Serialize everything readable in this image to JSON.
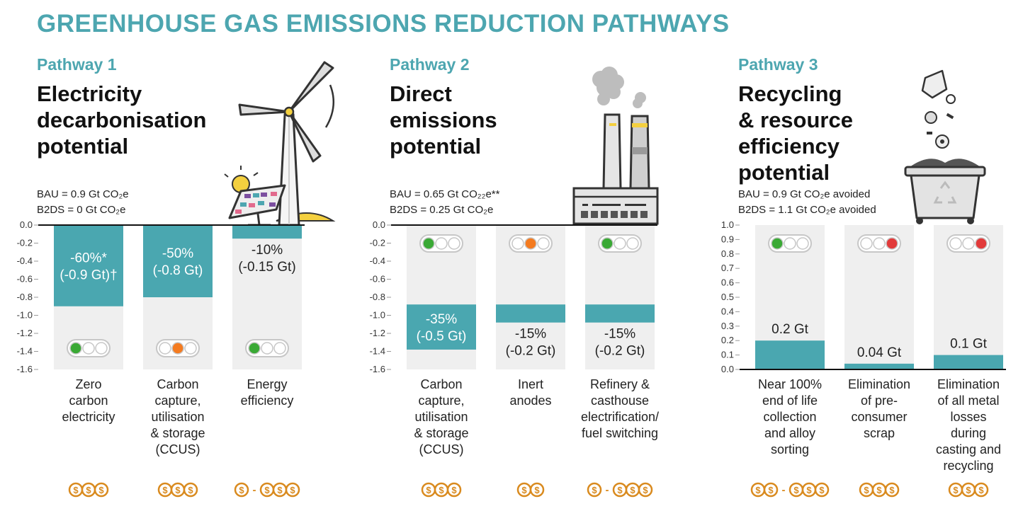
{
  "title": "GREENHOUSE GAS EMISSIONS REDUCTION PATHWAYS",
  "colors": {
    "accent": "#4da6b0",
    "bar": "#4aa7b0",
    "column_bg": "#efefef",
    "green": "#3aa935",
    "orange": "#f47b20",
    "red": "#e23a3a",
    "cost": "#d98a1e"
  },
  "pathways": [
    {
      "label": "Pathway 1",
      "title_lines": [
        "Electricity",
        "decarbonisation",
        "potential"
      ],
      "bau_lines": [
        "BAU = 0.9 Gt CO₂e",
        "B2DS = 0 Gt CO₂e"
      ],
      "illustration": "wind-turbine-and-solar-panel-icon",
      "costs": [
        "$$$",
        "$$$",
        "$-$$$"
      ],
      "chart_data": {
        "type": "bar",
        "direction": "down",
        "ylim": [
          -1.6,
          0.0
        ],
        "yticks": [
          "0.0",
          "-0.2",
          "-0.4",
          "-0.6",
          "-0.8",
          "-1.0",
          "-1.2",
          "-1.4",
          "-1.6"
        ],
        "categories": [
          [
            "Zero",
            "carbon",
            "electricity"
          ],
          [
            "Carbon",
            "capture,",
            "utilisation",
            "& storage",
            "(CCUS)"
          ],
          [
            "Energy",
            "efficiency"
          ]
        ],
        "values": [
          -0.9,
          -0.8,
          -0.15
        ],
        "labels": [
          [
            "-60%*",
            "(-0.9 Gt)†"
          ],
          [
            "-50%",
            "(-0.8 Gt)"
          ],
          [
            "-10%",
            "(-0.15 Gt)"
          ]
        ],
        "label_inside": [
          true,
          true,
          false
        ],
        "lights": [
          "green",
          "orange",
          "green"
        ],
        "lights_position": "bottom"
      }
    },
    {
      "label": "Pathway 2",
      "title_lines": [
        "Direct",
        "emissions",
        "potential"
      ],
      "bau_lines": [
        "BAU = 0.65 Gt CO₂₂e**",
        "B2DS = 0.25 Gt CO₂e"
      ],
      "illustration": "factory-smokestacks-icon",
      "costs": [
        "$$$",
        "$$",
        "$-$$$"
      ],
      "chart_data": {
        "type": "bar",
        "direction": "floating",
        "ylim": [
          -1.6,
          0.0
        ],
        "yticks": [
          "0.0",
          "-0.2",
          "-0.4",
          "-0.6",
          "-0.8",
          "-1.0",
          "-1.2",
          "-1.4",
          "-1.6"
        ],
        "categories": [
          [
            "Carbon",
            "capture,",
            "utilisation",
            "& storage",
            "(CCUS)"
          ],
          [
            "Inert",
            "anodes"
          ],
          [
            "Refinery &",
            "casthouse",
            "electrification/",
            "fuel switching"
          ]
        ],
        "ranges": [
          [
            -0.88,
            -1.38
          ],
          [
            -0.88,
            -1.08
          ],
          [
            -0.88,
            -1.08
          ]
        ],
        "labels": [
          [
            "-35%",
            "(-0.5 Gt)"
          ],
          [
            "-15%",
            "(-0.2 Gt)"
          ],
          [
            "-15%",
            "(-0.2 Gt)"
          ]
        ],
        "label_inside": [
          true,
          false,
          false
        ],
        "lights": [
          "green",
          "orange",
          "green"
        ],
        "lights_position": "top"
      }
    },
    {
      "label": "Pathway 3",
      "title_lines": [
        "Recycling",
        "& resource",
        "efficiency",
        "potential"
      ],
      "bau_lines": [
        "BAU = 0.9 Gt CO₂e avoided",
        "B2DS = 1.1 Gt CO₂e avoided"
      ],
      "illustration": "recycling-bin-icon",
      "costs": [
        "$$-$$$",
        "$$$",
        "$$$"
      ],
      "chart_data": {
        "type": "bar",
        "direction": "up",
        "ylim": [
          0.0,
          1.0
        ],
        "yticks": [
          "1.0",
          "0.9",
          "0.8",
          "0.7",
          "0.6",
          "0.5",
          "0.4",
          "0.3",
          "0.2",
          "0.1",
          "0.0"
        ],
        "categories": [
          [
            "Near 100%",
            "end of life",
            "collection",
            "and alloy",
            "sorting"
          ],
          [
            "Elimination",
            "of pre-",
            "consumer",
            "scrap"
          ],
          [
            "Elimination",
            "of all metal",
            "losses",
            "during",
            "casting and",
            "recycling"
          ]
        ],
        "values": [
          0.2,
          0.04,
          0.1
        ],
        "labels": [
          [
            "0.2 Gt"
          ],
          [
            "0.04 Gt"
          ],
          [
            "0.1 Gt"
          ]
        ],
        "label_inside": [
          false,
          false,
          false
        ],
        "lights": [
          "green",
          "red",
          "red"
        ],
        "lights_position": "top"
      }
    }
  ]
}
